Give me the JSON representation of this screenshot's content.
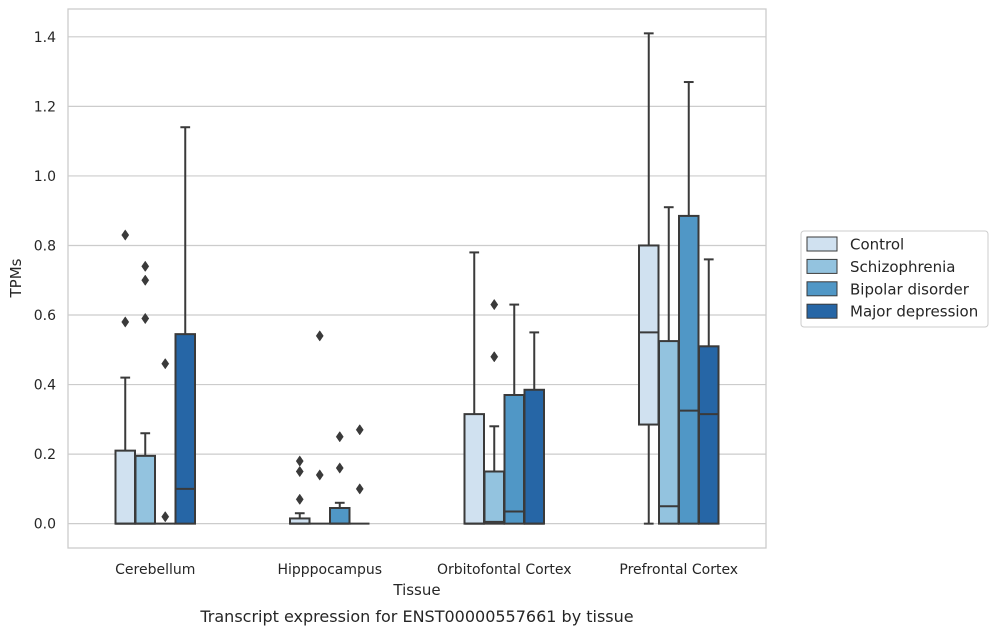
{
  "caption": "Transcript expression for ENST00000557661 by tissue",
  "chart_data": {
    "type": "boxplot",
    "xlabel": "Tissue",
    "ylabel": "TPMs",
    "ylim": [
      -0.07,
      1.48
    ],
    "yticks": [
      "0.0",
      "0.2",
      "0.4",
      "0.6",
      "0.8",
      "1.0",
      "1.2",
      "1.4"
    ],
    "grid": "horizontal",
    "legend_position": "right",
    "categories": [
      "Cerebellum",
      "Hipppocampus",
      "Orbitofontal Cortex",
      "Prefrontal Cortex"
    ],
    "series": [
      {
        "name": "Control",
        "color": "#d0e1f0",
        "boxes": [
          {
            "q1": 0.0,
            "median": 0.0,
            "q3": 0.21,
            "low": 0.0,
            "high": 0.42,
            "outliers": [
              0.58,
              0.83
            ]
          },
          {
            "q1": 0.0,
            "median": 0.0,
            "q3": 0.015,
            "low": 0.0,
            "high": 0.03,
            "outliers": [
              0.07,
              0.15,
              0.18
            ]
          },
          {
            "q1": 0.0,
            "median": 0.0,
            "q3": 0.315,
            "low": 0.0,
            "high": 0.78,
            "outliers": []
          },
          {
            "q1": 0.285,
            "median": 0.55,
            "q3": 0.8,
            "low": 0.0,
            "high": 1.41,
            "outliers": []
          }
        ]
      },
      {
        "name": "Schizophrenia",
        "color": "#93c3df",
        "boxes": [
          {
            "q1": 0.0,
            "median": 0.0,
            "q3": 0.195,
            "low": 0.0,
            "high": 0.26,
            "outliers": [
              0.59,
              0.7,
              0.74
            ]
          },
          {
            "q1": 0.0,
            "median": 0.0,
            "q3": 0.0,
            "low": 0.0,
            "high": 0.0,
            "outliers": [
              0.14,
              0.54
            ]
          },
          {
            "q1": 0.0,
            "median": 0.005,
            "q3": 0.15,
            "low": 0.0,
            "high": 0.28,
            "outliers": [
              0.48,
              0.63
            ]
          },
          {
            "q1": 0.0,
            "median": 0.05,
            "q3": 0.525,
            "low": 0.0,
            "high": 0.91,
            "outliers": []
          }
        ]
      },
      {
        "name": "Bipolar disorder",
        "color": "#5097c6",
        "boxes": [
          {
            "q1": 0.0,
            "median": 0.0,
            "q3": 0.0,
            "low": 0.0,
            "high": 0.0,
            "outliers": [
              0.02,
              0.46
            ]
          },
          {
            "q1": 0.0,
            "median": 0.0,
            "q3": 0.045,
            "low": 0.0,
            "high": 0.06,
            "outliers": [
              0.16,
              0.25
            ]
          },
          {
            "q1": 0.0,
            "median": 0.035,
            "q3": 0.37,
            "low": 0.0,
            "high": 0.63,
            "outliers": []
          },
          {
            "q1": 0.0,
            "median": 0.325,
            "q3": 0.885,
            "low": 0.0,
            "high": 1.27,
            "outliers": []
          }
        ]
      },
      {
        "name": "Major depression",
        "color": "#2666a6",
        "boxes": [
          {
            "q1": 0.0,
            "median": 0.1,
            "q3": 0.545,
            "low": 0.0,
            "high": 1.14,
            "outliers": []
          },
          {
            "q1": 0.0,
            "median": 0.0,
            "q3": 0.0,
            "low": 0.0,
            "high": 0.0,
            "outliers": [
              0.1,
              0.27
            ]
          },
          {
            "q1": 0.0,
            "median": 0.0,
            "q3": 0.385,
            "low": 0.0,
            "high": 0.55,
            "outliers": []
          },
          {
            "q1": 0.0,
            "median": 0.315,
            "q3": 0.51,
            "low": 0.0,
            "high": 0.76,
            "outliers": []
          }
        ]
      }
    ]
  }
}
